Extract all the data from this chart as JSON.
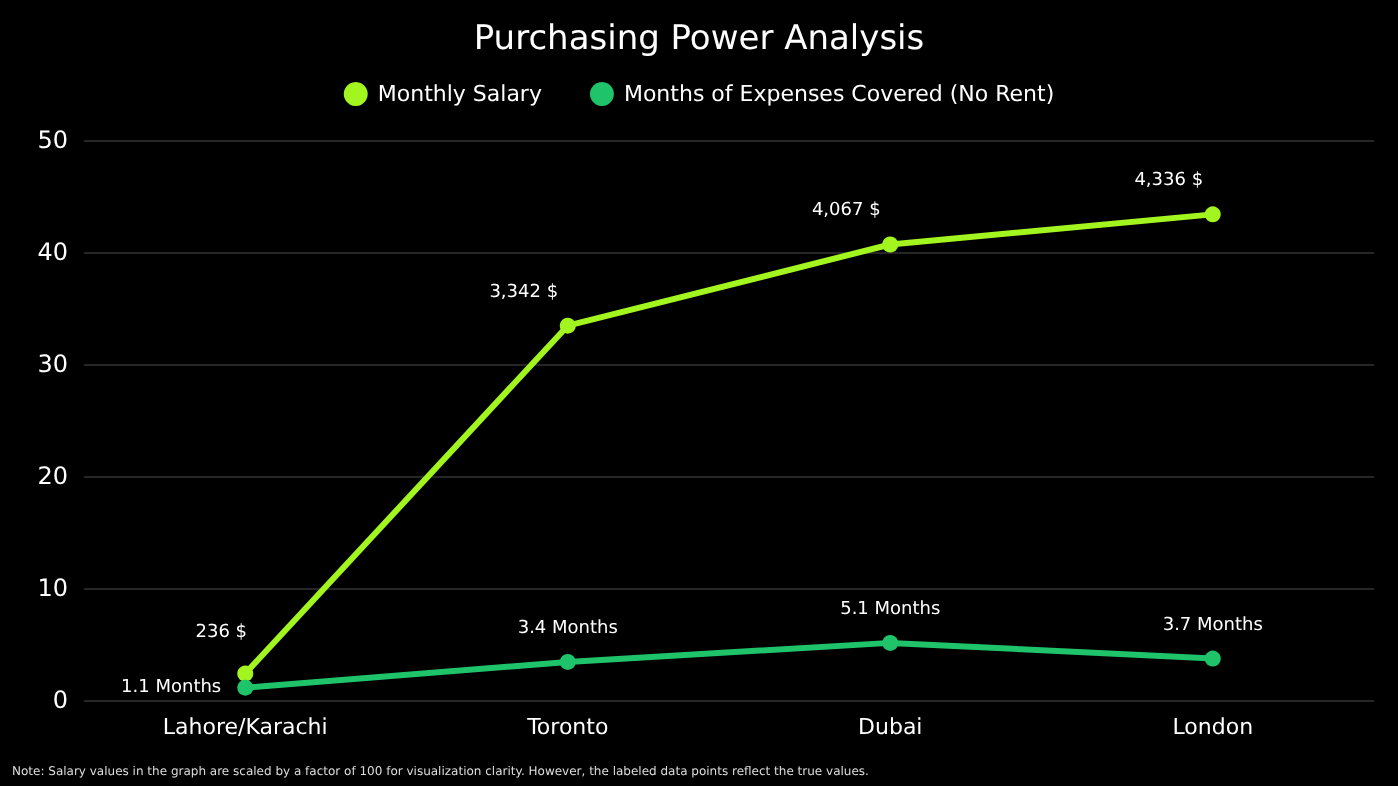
{
  "chart_data": {
    "type": "line",
    "title": "Purchasing Power Analysis",
    "categories": [
      "Lahore/Karachi",
      "Toronto",
      "Dubai",
      "London"
    ],
    "series": [
      {
        "name": "Monthly Salary",
        "color": "#a2f51f",
        "axis": "y2",
        "values": [
          236,
          3342,
          4067,
          4336
        ],
        "value_labels": [
          "236 $",
          "3,342 $",
          "4,067 $",
          "4,336 $"
        ]
      },
      {
        "name": "Months of Expenses Covered (No Rent)",
        "color": "#1fc46a",
        "values": [
          1.1,
          3.4,
          5.1,
          3.7
        ],
        "value_labels": [
          "1.1 Months",
          "3.4 Months",
          "5.1 Months",
          "3.7 Months"
        ]
      }
    ],
    "ylim": [
      0,
      50
    ],
    "yticks": [
      0,
      10,
      20,
      30,
      40,
      50
    ],
    "y2lim": [
      0,
      5000
    ],
    "tick_labels": "y",
    "grid": "y",
    "legend": "top",
    "marker": "circle",
    "line_style": "solid",
    "annotations": [
      "Note: Salary values in the graph are scaled by a factor of 100 for visualization clarity. However, the labeled data points reflect the true values."
    ]
  }
}
